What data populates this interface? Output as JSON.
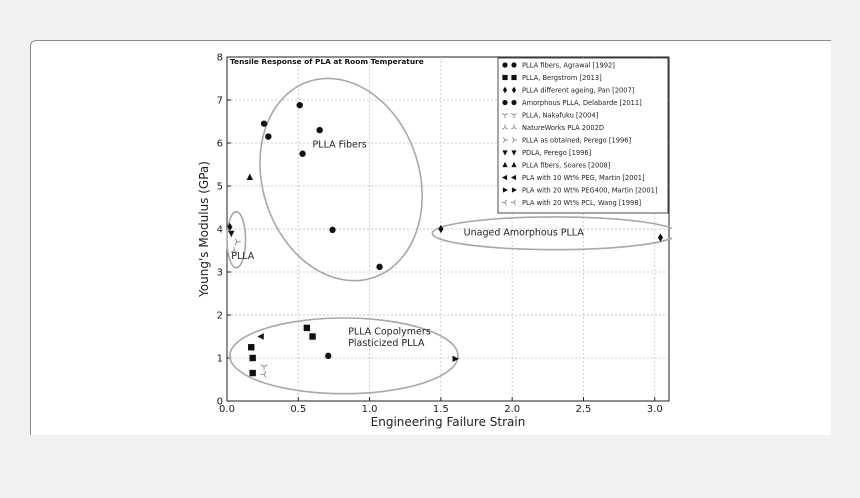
{
  "colors": {
    "page_bg": "#f2f2f2",
    "card_bg": "#ffffff",
    "marker": "#111111",
    "ellipse": "#a8a8a8",
    "grid": "#bdbdbd"
  },
  "chart_data": {
    "type": "scatter",
    "title": "Tensile Response of PLA at Room Temperature",
    "xlabel": "Engineering Failure Strain",
    "ylabel": "Young's Modulus (GPa)",
    "xlim": [
      0,
      3.1
    ],
    "ylim": [
      0,
      8
    ],
    "xticks": [
      "0.0",
      "0.5",
      "1.0",
      "1.5",
      "2.0",
      "2.5",
      "3.0"
    ],
    "yticks": [
      "0",
      "1",
      "2",
      "3",
      "4",
      "5",
      "6",
      "7",
      "8"
    ],
    "grid": true,
    "legend_position": "top-right",
    "series": [
      {
        "name": "PLLA fibers, Agrawal [1992]",
        "marker": "circle",
        "points": [
          [
            0.26,
            6.45
          ],
          [
            0.29,
            6.15
          ],
          [
            0.51,
            6.88
          ],
          [
            0.53,
            5.75
          ],
          [
            0.65,
            6.3
          ],
          [
            0.74,
            3.98
          ],
          [
            1.07,
            3.12
          ]
        ]
      },
      {
        "name": "PLLA, Bergstrom [2013]",
        "marker": "square",
        "points": [
          [
            0.17,
            1.25
          ],
          [
            0.18,
            1.0
          ],
          [
            0.18,
            0.65
          ],
          [
            0.56,
            1.7
          ],
          [
            0.6,
            1.5
          ]
        ]
      },
      {
        "name": "PLLA different ageing, Pan [2007]",
        "marker": "diamond",
        "points": [
          [
            0.02,
            4.05
          ],
          [
            1.5,
            4.0
          ],
          [
            3.04,
            3.8
          ]
        ]
      },
      {
        "name": "Amorphous PLLA, Delabarde [2011]",
        "marker": "circle",
        "points": [
          [
            0.71,
            1.05
          ]
        ]
      },
      {
        "name": "PLLA, Nakafuku [2004]",
        "marker": "tri_down_thin",
        "points": [
          [
            0.26,
            0.8
          ]
        ]
      },
      {
        "name": "NatureWorks PLA 2002D",
        "marker": "tri_up_thin",
        "points": [
          [
            0.05,
            3.5
          ]
        ]
      },
      {
        "name": "PLLA as obtained, Perego [1996]",
        "marker": "tri_right_thin",
        "points": [
          [
            0.07,
            3.7
          ]
        ]
      },
      {
        "name": "PDLA, Perego [1996]",
        "marker": "triangle_down",
        "points": [
          [
            0.03,
            3.9
          ]
        ]
      },
      {
        "name": "PLLA fibers, Soares [2008]",
        "marker": "triangle_up",
        "points": [
          [
            0.16,
            5.2
          ]
        ]
      },
      {
        "name": "PLA with 10 Wt% PEG, Martin [2001]",
        "marker": "triangle_left",
        "points": [
          [
            0.24,
            1.5
          ]
        ]
      },
      {
        "name": "PLA with 20 Wt% PEG400, Martin [2001]",
        "marker": "triangle_right",
        "points": [
          [
            1.6,
            0.98
          ]
        ]
      },
      {
        "name": "PLA with 20 Wt% PCL, Wang [1998]",
        "marker": "tri_left_thin",
        "points": [
          [
            0.26,
            0.62
          ]
        ]
      }
    ],
    "annotations": [
      {
        "text": "PLLA Fibers",
        "x": 0.6,
        "y": 5.9
      },
      {
        "text": "PLLA",
        "x": 0.03,
        "y": 3.3
      },
      {
        "text": "Unaged Amorphous PLLA",
        "x": 1.66,
        "y": 3.85
      },
      {
        "text": "PLLA Copolymers",
        "x": 0.85,
        "y": 1.55
      },
      {
        "text": "Plasticized PLLA",
        "x": 0.85,
        "y": 1.28
      }
    ],
    "groupings": [
      {
        "label": "PLLA Fibers",
        "cx": 0.8,
        "cy": 5.15,
        "rx": 0.55,
        "ry": 2.4,
        "rotate_deg": 18
      },
      {
        "label": "PLLA",
        "cx": 0.065,
        "cy": 3.75,
        "rx": 0.065,
        "ry": 0.65,
        "rotate_deg": 0
      },
      {
        "label": "Unaged Amorphous PLLA",
        "cx": 2.3,
        "cy": 3.9,
        "rx": 0.86,
        "ry": 0.38,
        "rotate_deg": 0
      },
      {
        "label": "PLLA Copolymers",
        "cx": 0.82,
        "cy": 1.05,
        "rx": 0.8,
        "ry": 0.88,
        "rotate_deg": 0
      }
    ]
  }
}
